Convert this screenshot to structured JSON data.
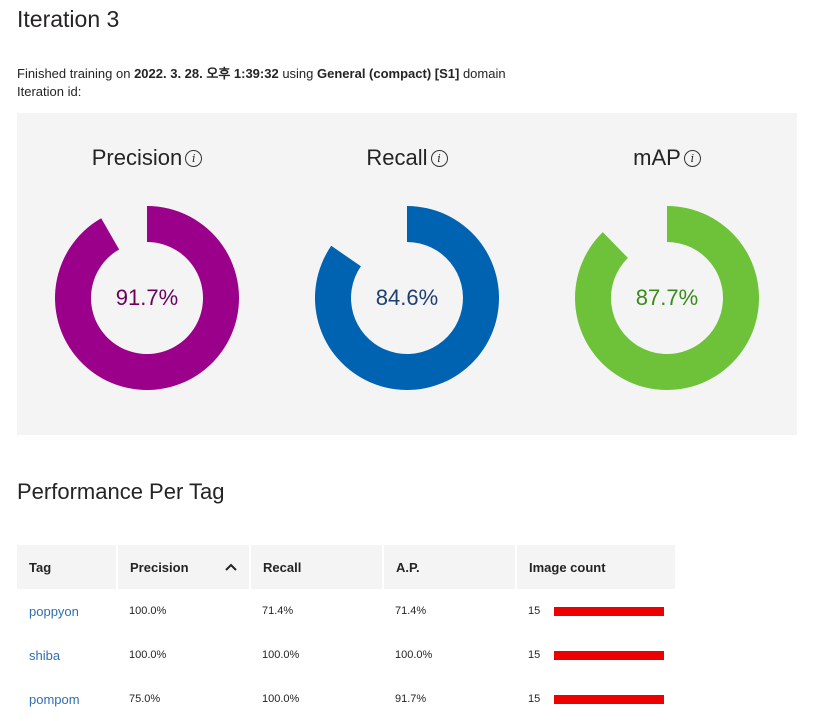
{
  "page": {
    "title": "Iteration 3",
    "finished_prefix": "Finished training on ",
    "finished_date": "2022. 3. 28. 오후 1:39:32",
    "using_text": " using ",
    "domain_name": "General (compact) [S1]",
    "domain_suffix": " domain",
    "iteration_id_label": "Iteration id:"
  },
  "metrics": [
    {
      "label": "Precision",
      "value": "91.7%",
      "fraction": 0.917,
      "color": "#9a0089",
      "text_color": "#6b0060"
    },
    {
      "label": "Recall",
      "value": "84.6%",
      "fraction": 0.846,
      "color": "#0063b1",
      "text_color": "#1f3f73"
    },
    {
      "label": "mAP",
      "value": "87.7%",
      "fraction": 0.877,
      "color": "#6dc23a",
      "text_color": "#3a8a1d"
    }
  ],
  "info_icon": "info-icon",
  "performance": {
    "title": "Performance Per Tag",
    "columns": [
      "Tag",
      "Precision",
      "Recall",
      "A.P.",
      "Image count"
    ],
    "sort_icon": "chevron-up-icon",
    "rows": [
      {
        "tag": "poppyon",
        "precision": "100.0%",
        "recall": "71.4%",
        "ap": "71.4%",
        "image_count": "15",
        "bar_fraction": 1.0
      },
      {
        "tag": "shiba",
        "precision": "100.0%",
        "recall": "100.0%",
        "ap": "100.0%",
        "image_count": "15",
        "bar_fraction": 1.0
      },
      {
        "tag": "pompom",
        "precision": "75.0%",
        "recall": "100.0%",
        "ap": "91.7%",
        "image_count": "15",
        "bar_fraction": 1.0
      }
    ],
    "bar_color": "#ec0000"
  }
}
